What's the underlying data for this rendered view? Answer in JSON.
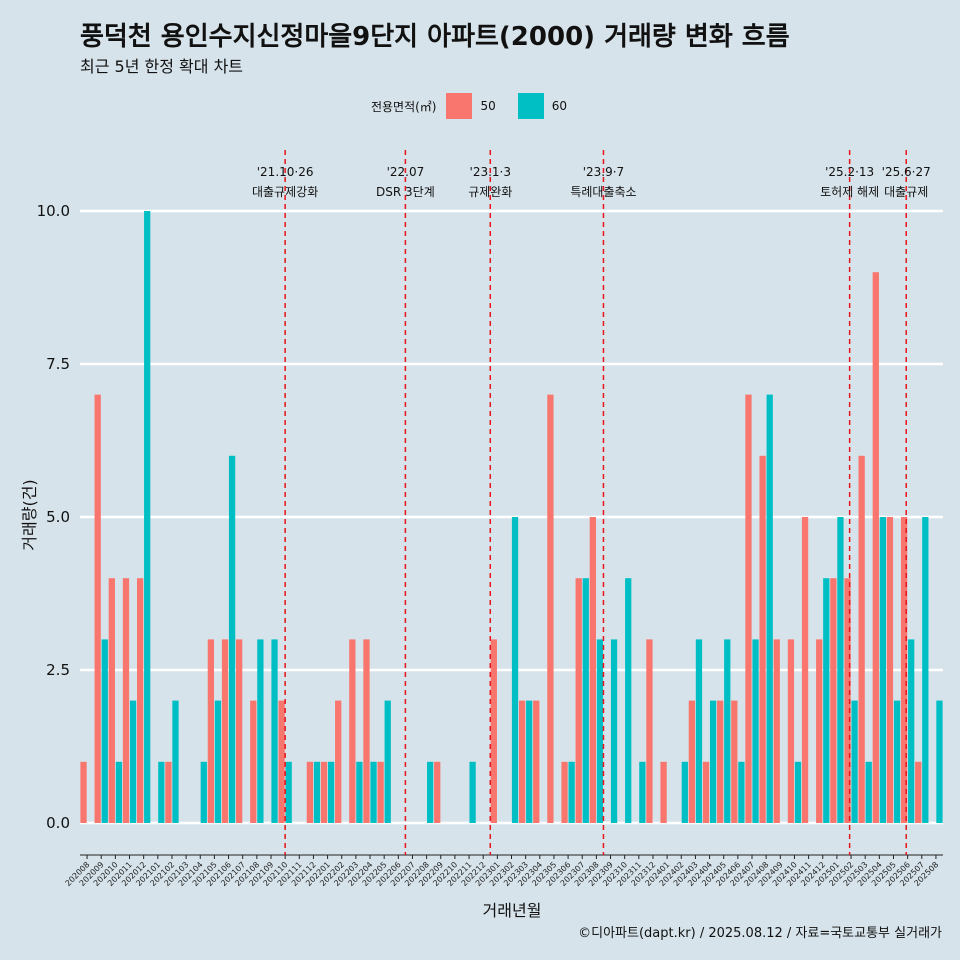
{
  "title": "풍덕천 용인수지신정마을9단지 아파트(2000) 거래량 변화 흐름",
  "subtitle": "최근 5년 한정 확대 차트",
  "legend": {
    "title": "전용면적(㎡)",
    "items": [
      {
        "label": "50",
        "color": "#f8766d"
      },
      {
        "label": "60",
        "color": "#00bfc4"
      }
    ]
  },
  "caption": "©디아파트(dapt.kr) / 2025.08.12 / 자료=국토교통부 실거래가",
  "chart_data": {
    "type": "bar",
    "title": "풍덕천 용인수지신정마을9단지 아파트(2000) 거래량 변화 흐름",
    "xlabel": "거래년월",
    "ylabel": "거래량(건)",
    "ylim": [
      0,
      10
    ],
    "yticks": [
      0,
      2.5,
      5,
      7.5,
      10
    ],
    "ytick_labels": [
      "0.0",
      "2.5",
      "5.0",
      "7.5",
      "10.0"
    ],
    "categories": [
      "202008",
      "202009",
      "202010",
      "202011",
      "202012",
      "202101",
      "202102",
      "202103",
      "202104",
      "202105",
      "202106",
      "202107",
      "202108",
      "202109",
      "202110",
      "202111",
      "202112",
      "202201",
      "202202",
      "202203",
      "202204",
      "202205",
      "202206",
      "202207",
      "202208",
      "202209",
      "202210",
      "202211",
      "202212",
      "202301",
      "202302",
      "202303",
      "202304",
      "202305",
      "202306",
      "202307",
      "202308",
      "202309",
      "202310",
      "202311",
      "202312",
      "202401",
      "202402",
      "202403",
      "202404",
      "202405",
      "202406",
      "202407",
      "202408",
      "202409",
      "202410",
      "202411",
      "202412",
      "202501",
      "202502",
      "202503",
      "202504",
      "202505",
      "202506",
      "202507",
      "202508"
    ],
    "series": [
      {
        "name": "50",
        "color": "#f8766d",
        "values": [
          1,
          7,
          4,
          4,
          4,
          0,
          1,
          0,
          0,
          3,
          3,
          3,
          2,
          0,
          2,
          0,
          1,
          1,
          2,
          3,
          3,
          1,
          0,
          0,
          0,
          1,
          0,
          0,
          0,
          3,
          0,
          2,
          2,
          7,
          1,
          4,
          5,
          0,
          0,
          0,
          3,
          1,
          0,
          2,
          1,
          2,
          2,
          7,
          6,
          3,
          3,
          5,
          3,
          4,
          4,
          6,
          9,
          5,
          5,
          1,
          0
        ]
      },
      {
        "name": "60",
        "color": "#00bfc4",
        "values": [
          0,
          3,
          1,
          2,
          10,
          1,
          2,
          0,
          1,
          2,
          6,
          0,
          3,
          3,
          1,
          0,
          1,
          1,
          0,
          1,
          1,
          2,
          0,
          0,
          1,
          0,
          0,
          1,
          0,
          0,
          5,
          2,
          0,
          0,
          1,
          4,
          3,
          3,
          4,
          1,
          0,
          0,
          1,
          3,
          2,
          3,
          1,
          3,
          7,
          0,
          1,
          0,
          4,
          5,
          2,
          1,
          5,
          2,
          3,
          5,
          2
        ]
      }
    ],
    "events": [
      {
        "date": "'21.10·26",
        "label": "대출규제강화",
        "index": 14.5
      },
      {
        "date": "'22.07",
        "label": "DSR 3단계",
        "index": 23
      },
      {
        "date": "'23.1·3",
        "label": "규제완화",
        "index": 29
      },
      {
        "date": "'23.9·7",
        "label": "특례대출축소",
        "index": 37
      },
      {
        "date": "'25.2·13",
        "label": "토허제 해제",
        "index": 54.4
      },
      {
        "date": "'25.6·27",
        "label": "대출규제",
        "index": 58.4
      }
    ]
  }
}
